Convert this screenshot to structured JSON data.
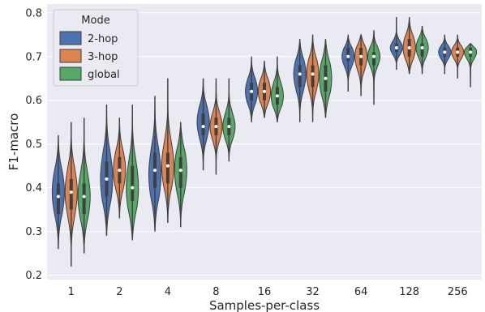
{
  "chart_data": {
    "type": "violin",
    "xlabel": "Samples-per-class",
    "ylabel": "F1-macro",
    "categories": [
      "1",
      "2",
      "4",
      "8",
      "16",
      "32",
      "64",
      "128",
      "256"
    ],
    "ylim": [
      0.19,
      0.82
    ],
    "yticks": [
      0.2,
      0.3,
      0.4,
      0.5,
      0.6,
      0.7,
      0.8
    ],
    "ytick_labels": [
      "0.2",
      "0.3",
      "0.4",
      "0.5",
      "0.6",
      "0.7",
      "0.8"
    ],
    "grid": true,
    "background": "#eaeaf2",
    "legend": {
      "title": "Mode",
      "position": "top-left"
    },
    "series": [
      {
        "name": "2-hop",
        "color": "#4c72b0",
        "min": [
          0.26,
          0.29,
          0.3,
          0.44,
          0.55,
          0.55,
          0.62,
          0.67,
          0.66
        ],
        "q1": [
          0.34,
          0.38,
          0.4,
          0.52,
          0.6,
          0.63,
          0.69,
          0.71,
          0.7
        ],
        "median": [
          0.38,
          0.42,
          0.44,
          0.54,
          0.62,
          0.66,
          0.7,
          0.72,
          0.71
        ],
        "q3": [
          0.41,
          0.46,
          0.48,
          0.57,
          0.64,
          0.68,
          0.72,
          0.73,
          0.72
        ],
        "max": [
          0.52,
          0.59,
          0.61,
          0.65,
          0.7,
          0.74,
          0.75,
          0.79,
          0.75
        ],
        "mode": [
          0.39,
          0.42,
          0.43,
          0.55,
          0.62,
          0.66,
          0.7,
          0.72,
          0.71
        ]
      },
      {
        "name": "3-hop",
        "color": "#dd8452",
        "min": [
          0.22,
          0.33,
          0.32,
          0.43,
          0.56,
          0.55,
          0.61,
          0.66,
          0.65
        ],
        "q1": [
          0.35,
          0.41,
          0.41,
          0.52,
          0.6,
          0.63,
          0.68,
          0.7,
          0.7
        ],
        "median": [
          0.39,
          0.44,
          0.45,
          0.54,
          0.62,
          0.66,
          0.7,
          0.72,
          0.71
        ],
        "q3": [
          0.42,
          0.47,
          0.48,
          0.56,
          0.64,
          0.68,
          0.72,
          0.74,
          0.72
        ],
        "max": [
          0.55,
          0.56,
          0.65,
          0.65,
          0.69,
          0.75,
          0.75,
          0.79,
          0.75
        ],
        "mode": [
          0.39,
          0.44,
          0.45,
          0.54,
          0.62,
          0.66,
          0.7,
          0.72,
          0.71
        ]
      },
      {
        "name": "global",
        "color": "#55a868",
        "min": [
          0.25,
          0.28,
          0.31,
          0.46,
          0.55,
          0.56,
          0.59,
          0.66,
          0.63
        ],
        "q1": [
          0.34,
          0.37,
          0.4,
          0.52,
          0.59,
          0.62,
          0.68,
          0.7,
          0.7
        ],
        "median": [
          0.38,
          0.4,
          0.44,
          0.54,
          0.61,
          0.65,
          0.7,
          0.72,
          0.71
        ],
        "q3": [
          0.41,
          0.45,
          0.47,
          0.56,
          0.63,
          0.68,
          0.71,
          0.73,
          0.72
        ],
        "max": [
          0.56,
          0.59,
          0.55,
          0.65,
          0.7,
          0.74,
          0.76,
          0.77,
          0.73
        ],
        "mode": [
          0.38,
          0.4,
          0.44,
          0.54,
          0.61,
          0.65,
          0.7,
          0.72,
          0.71
        ]
      }
    ]
  }
}
